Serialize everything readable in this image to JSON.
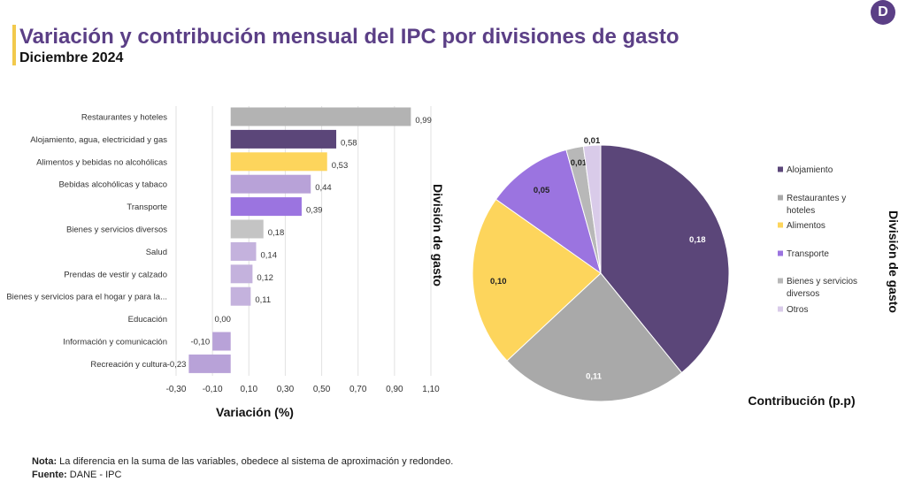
{
  "header": {
    "title": "Variación  y contribución mensual del IPC por divisiones de gasto",
    "subtitle": "Diciembre 2024",
    "logo_letter": "D"
  },
  "footer": {
    "note_label": "Nota:",
    "note_text": " La diferencia en la suma de las variables, obedece al sistema de aproximación y redondeo.",
    "source_label": "Fuente:",
    "source_text": " DANE - IPC"
  },
  "colors": {
    "title": "#5b3f86",
    "accent": "#f2c94c"
  },
  "chart_data": [
    {
      "type": "bar",
      "orientation": "horizontal",
      "categories": [
        "Restaurantes y hoteles",
        "Alojamiento, agua, electricidad y gas",
        "Alimentos y bebidas no alcohólicas",
        "Bebidas alcohólicas y tabaco",
        "Transporte",
        "Bienes y servicios diversos",
        "Salud",
        "Prendas de vestir y calzado",
        "Bienes y servicios para el hogar y para la...",
        "Educación",
        "Información y comunicación",
        "Recreación y cultura"
      ],
      "values": [
        0.99,
        0.58,
        0.53,
        0.44,
        0.39,
        0.18,
        0.14,
        0.12,
        0.11,
        0.0,
        -0.1,
        -0.23
      ],
      "value_labels": [
        "0,99",
        "0,58",
        "0,53",
        "0,44",
        "0,39",
        "0,18",
        "0,14",
        "0,12",
        "0,11",
        "0,00",
        "-0,10",
        "-0,23"
      ],
      "colors": [
        "#b3b3b3",
        "#5b4679",
        "#fdd55c",
        "#b8a2d8",
        "#9b74e0",
        "#c4c4c4",
        "#c4b2dd",
        "#c4b2dd",
        "#c4b2dd",
        "#c4b2dd",
        "#b8a2d8",
        "#b8a2d8"
      ],
      "xlim": [
        -0.3,
        1.1
      ],
      "xticks": [
        "-0,30",
        "-0,10",
        "0,10",
        "0,30",
        "0,50",
        "0,70",
        "0,90",
        "1,10"
      ],
      "xlabel": "Variación (%)",
      "ylabel": "División de gasto",
      "grid": true
    },
    {
      "type": "pie",
      "labels": [
        "Alojamiento",
        "Restaurantes y hoteles",
        "Alimentos",
        "Transporte",
        "Bienes y servicios diversos",
        "Otros"
      ],
      "values": [
        0.18,
        0.11,
        0.1,
        0.05,
        0.01,
        0.01
      ],
      "value_labels": [
        "0,18",
        "0,11",
        "0,10",
        "0,05",
        "0,01",
        "0,01"
      ],
      "colors": [
        "#5b4679",
        "#a9a9a9",
        "#fdd55c",
        "#9b74e0",
        "#b8b8b8",
        "#d9cbe9"
      ],
      "legend_position": "right",
      "xlabel": "Contribución (p.p)",
      "ylabel": "División de gasto"
    }
  ]
}
